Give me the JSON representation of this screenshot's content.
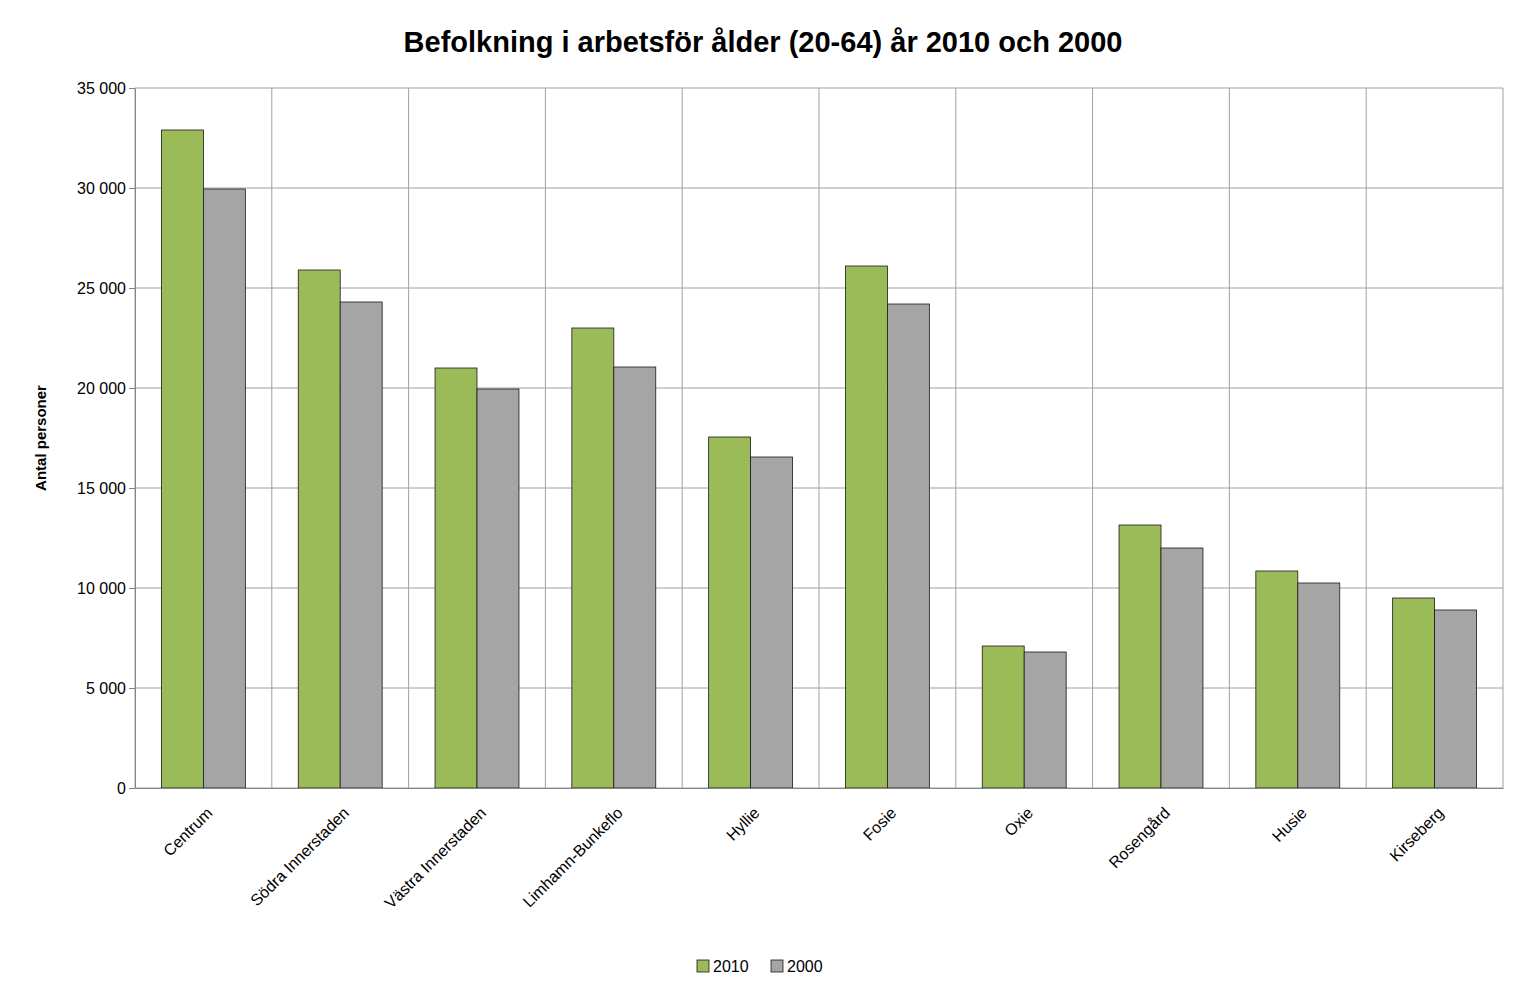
{
  "chart_data": {
    "type": "bar",
    "title": "Befolkning i arbetsför ålder (20-64) år 2010 och 2000",
    "y_label": "Antal personer",
    "categories": [
      "Centrum",
      "Södra Innerstaden",
      "Västra Innerstaden",
      "Limhamn-Bunkeflo",
      "Hyllie",
      "Fosie",
      "Oxie",
      "Rosengård",
      "Husie",
      "Kirseberg"
    ],
    "series": [
      {
        "name": "2010",
        "color": "#9bbb59",
        "values": [
          32900,
          25900,
          21000,
          23000,
          17550,
          26100,
          7100,
          13150,
          10850,
          9500
        ]
      },
      {
        "name": "2000",
        "color": "#a5a5a5",
        "values": [
          29950,
          24300,
          19950,
          21050,
          16550,
          24200,
          6800,
          12000,
          10250,
          8900
        ]
      }
    ],
    "ylim": [
      0,
      35000
    ],
    "yticks": [
      0,
      {
        "value": 5000,
        "label": "5 000"
      },
      {
        "value": 10000,
        "label": "10 000"
      },
      {
        "value": 15000,
        "label": "15 000"
      },
      {
        "value": 20000,
        "label": "20 000"
      },
      {
        "value": 25000,
        "label": "25 000"
      },
      {
        "value": 30000,
        "label": "30 000"
      },
      {
        "value": 35000,
        "label": "35 000"
      }
    ],
    "grid": true,
    "legend": "bottom"
  }
}
